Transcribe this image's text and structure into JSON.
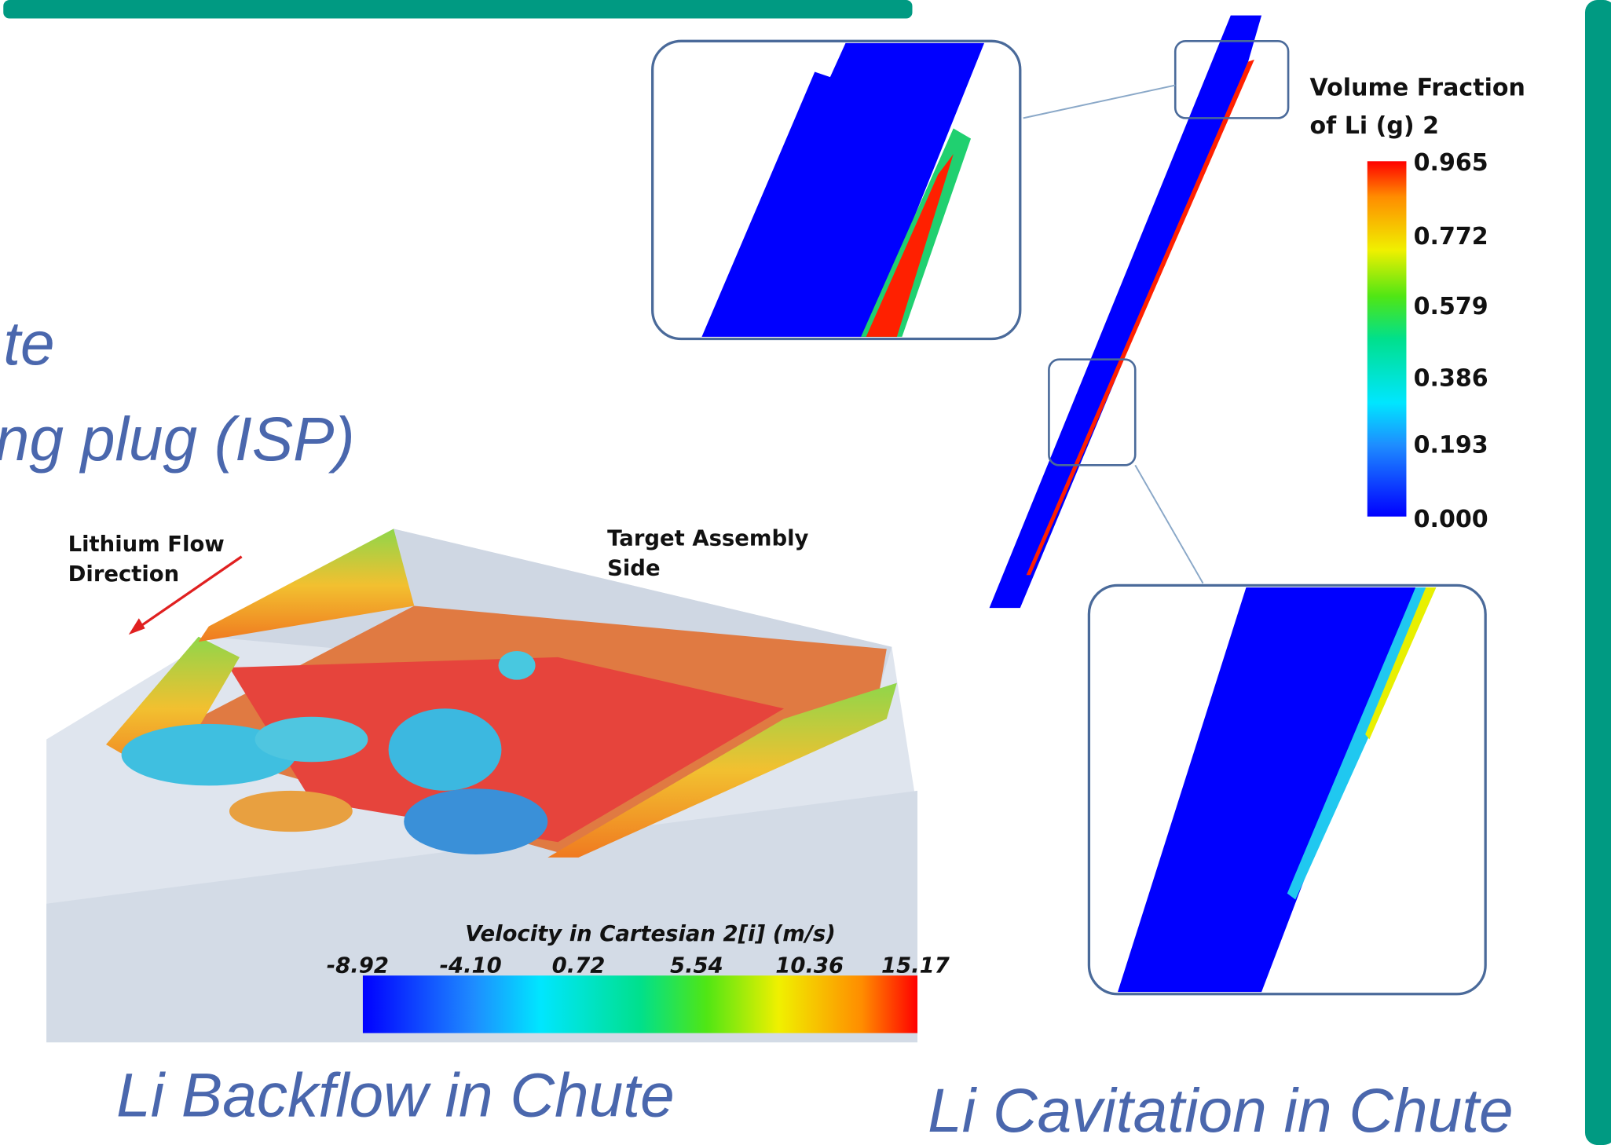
{
  "slide": {
    "title_lines": [
      "te",
      "ng plug (ISP)"
    ],
    "backflow_figure": {
      "flow_label": [
        "Lithium Flow",
        "Direction"
      ],
      "side_label": [
        "Target Assembly",
        "Side"
      ],
      "colorbar_title": "Velocity in Cartesian 2[i] (m/s)",
      "colorbar_ticks": [
        "-8.92",
        "-4.10",
        "0.72",
        "5.54",
        "10.36",
        "15.17"
      ],
      "caption": "Li Backflow in Chute"
    },
    "cavitation_figure": {
      "colorbar_title": [
        "Volume Fraction",
        "of Li (g) 2"
      ],
      "colorbar_ticks": [
        "0.965",
        "0.772",
        "0.579",
        "0.386",
        "0.193",
        "0.000"
      ],
      "caption": "Li Cavitation in Chute"
    }
  }
}
